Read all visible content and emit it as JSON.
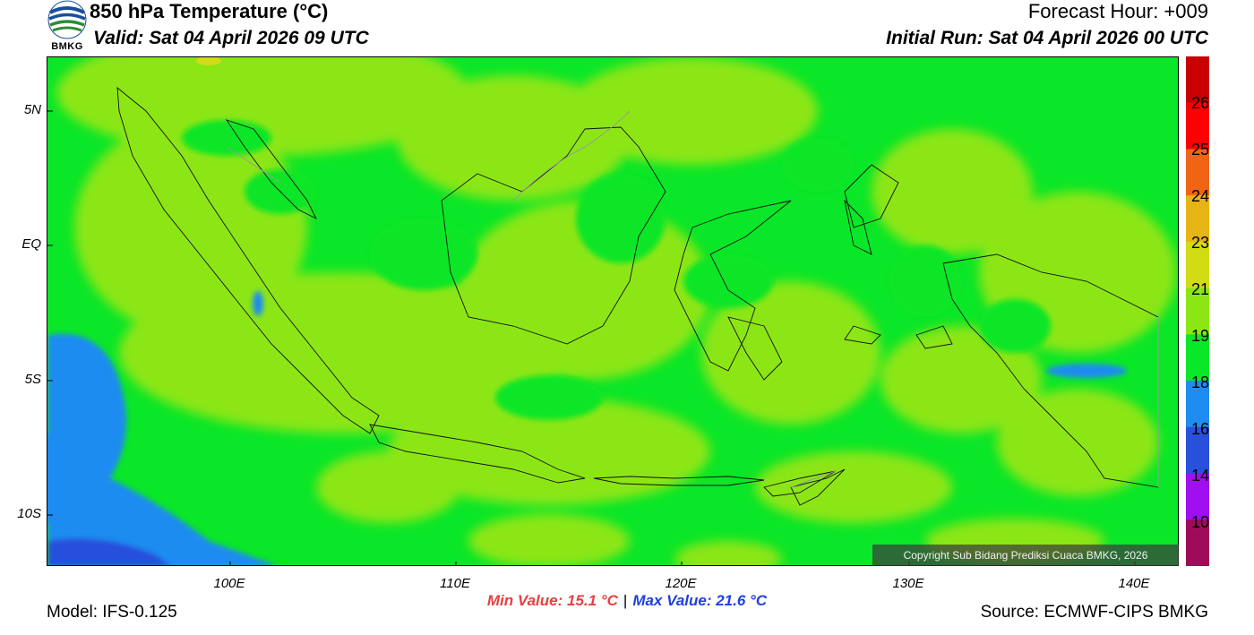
{
  "header": {
    "title": "850 hPa Temperature (°C)",
    "valid": "Valid: Sat 04 April 2026 09 UTC",
    "forecast_hour": "Forecast Hour: +009",
    "initial_run": "Initial Run: Sat 04 April 2026 00 UTC"
  },
  "logo": {
    "text": "BMKG",
    "icon": "bmkg-logo-icon"
  },
  "map": {
    "lat_labels": [
      "5N",
      "EQ",
      "5S",
      "10S"
    ],
    "lon_labels": [
      "100E",
      "110E",
      "120E",
      "130E",
      "140E"
    ],
    "copyright": "Copyright Sub Bidang Prediksi Cuaca BMKG, 2026"
  },
  "colorbar": {
    "labels": [
      "26",
      "25",
      "24",
      "23",
      "21",
      "19",
      "18",
      "16",
      "14",
      "10"
    ],
    "colors": [
      "#c80000",
      "#ff0000",
      "#f06414",
      "#e6b414",
      "#d2dc14",
      "#8ce614",
      "#0ae628",
      "#1e8cf0",
      "#2850dc",
      "#a00ff0",
      "#a00a5a"
    ]
  },
  "stats": {
    "min": "Min Value: 15.1 °C",
    "separator": "|",
    "max": "Max Value: 21.6 °C"
  },
  "footer": {
    "model": "Model: IFS-0.125",
    "source": "Source: ECMWF-CIPS BMKG"
  }
}
